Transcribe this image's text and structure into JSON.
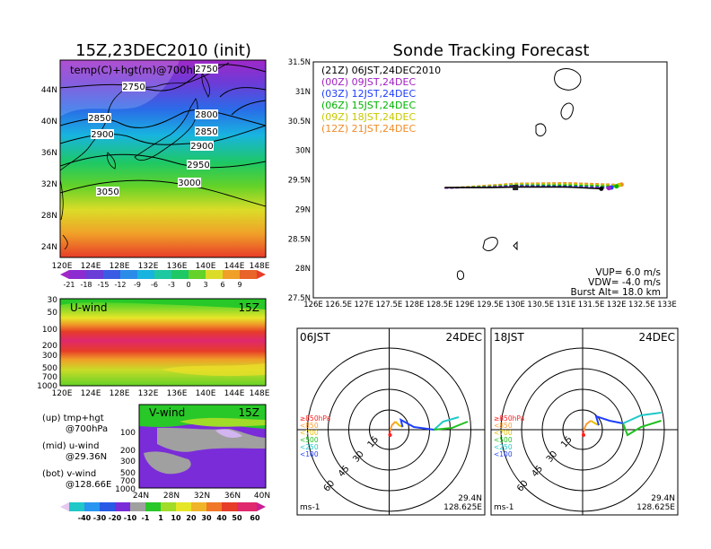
{
  "left_title": "15Z,23DEC2010 (init)",
  "right_title": "Sonde Tracking Forecast",
  "map_panel": {
    "label": "temp(C)+hgt(m)@700hPa",
    "lon_ticks": [
      "120E",
      "124E",
      "128E",
      "132E",
      "136E",
      "140E",
      "144E",
      "148E"
    ],
    "lat_ticks": [
      "44N",
      "40N",
      "36N",
      "32N",
      "28N",
      "24N"
    ],
    "contours": [
      "2750",
      "2750",
      "2800",
      "2850",
      "2850",
      "2900",
      "2900",
      "2950",
      "3000",
      "3050"
    ],
    "colorbar": [
      "-21",
      "-18",
      "-15",
      "-12",
      "-9",
      "-6",
      "-3",
      "0",
      "3",
      "6",
      "9"
    ]
  },
  "u_panel": {
    "label": "U-wind",
    "time": "15Z",
    "y_ticks": [
      "30",
      "50",
      "100",
      "200",
      "300",
      "500",
      "700",
      "1000"
    ],
    "x_ticks": [
      "120E",
      "124E",
      "128E",
      "132E",
      "136E",
      "140E",
      "144E",
      "148E"
    ]
  },
  "v_panel": {
    "label": "V-wind",
    "time": "15Z",
    "y_ticks": [
      "100",
      "200",
      "300",
      "500",
      "700",
      "1000"
    ],
    "x_ticks": [
      "24N",
      "28N",
      "32N",
      "36N",
      "40N"
    ],
    "colorbar": [
      "-40",
      "-30",
      "-20",
      "-10",
      "-1",
      "1",
      "10",
      "20",
      "30",
      "40",
      "50",
      "60"
    ]
  },
  "notes": [
    {
      "a": "(up) tmp+hgt",
      "b": "@700hPa"
    },
    {
      "a": "(mid) u-wind",
      "b": "@29.36N"
    },
    {
      "a": "(bot) v-wind",
      "b": "@128.66E"
    }
  ],
  "track_panel": {
    "legend": [
      {
        "text": "(21Z)  06JST,24DEC2010",
        "color": "#000000"
      },
      {
        "text": "(00Z)  09JST,24DEC",
        "color": "#a020c0"
      },
      {
        "text": "(03Z)  12JST,24DEC",
        "color": "#1e3cff"
      },
      {
        "text": "(06Z)  15JST,24DEC",
        "color": "#00b400"
      },
      {
        "text": "(09Z)  18JST,24DEC",
        "color": "#c8c800"
      },
      {
        "text": "(12Z)  21JST,24DEC",
        "color": "#f08c28"
      }
    ],
    "x_ticks": [
      "126E",
      "126.5E",
      "127E",
      "127.5E",
      "128E",
      "128.5E",
      "129E",
      "129.5E",
      "130E",
      "130.5E",
      "131E",
      "131.5E",
      "132E",
      "132.5E",
      "133E"
    ],
    "y_ticks": [
      "31.5N",
      "31N",
      "30.5N",
      "30N",
      "29.5N",
      "29N",
      "28.5N",
      "28N",
      "27.5N"
    ],
    "params": [
      "VUP=  6.0  m/s",
      "VDW= -4.0  m/s",
      "Burst Alt= 18.0  km"
    ]
  },
  "hodographs": [
    {
      "time": "06JST",
      "date": "24DEC",
      "lat": "29.4N",
      "lon": "128.625E",
      "unit": "ms-1",
      "rings": [
        "15",
        "30",
        "45",
        "60"
      ],
      "levels": [
        {
          "t": "≥850hPa",
          "c": "#ff2020"
        },
        {
          "t": "<850",
          "c": "#ff9a30"
        },
        {
          "t": "<700",
          "c": "#e6c000"
        },
        {
          "t": "<500",
          "c": "#20c020"
        },
        {
          "t": "<250",
          "c": "#20c8c8"
        },
        {
          "t": "<100",
          "c": "#2040ff"
        }
      ]
    },
    {
      "time": "18JST",
      "date": "24DEC",
      "lat": "29.4N",
      "lon": "128.625E",
      "unit": "ms-1",
      "rings": [
        "15",
        "30",
        "45",
        "60"
      ],
      "levels": [
        {
          "t": "≥850hPa",
          "c": "#ff2020"
        },
        {
          "t": "<850",
          "c": "#ff9a30"
        },
        {
          "t": "<700",
          "c": "#e6c000"
        },
        {
          "t": "<500",
          "c": "#20c020"
        },
        {
          "t": "<250",
          "c": "#20c8c8"
        },
        {
          "t": "<100",
          "c": "#2040ff"
        }
      ]
    }
  ],
  "chart_data": [
    {
      "type": "heatmap",
      "title": "15Z,23DEC2010 (init)",
      "xlabel": "",
      "ylabel": "",
      "xlim": [
        "120E",
        "148E"
      ],
      "ylim": [
        "23N",
        "47N"
      ],
      "levels": [
        -21,
        -18,
        -15,
        -12,
        -9,
        -6,
        -3,
        0,
        3,
        6,
        9
      ]
    },
    {
      "type": "heatmap",
      "title": "U-wind",
      "ylim": [
        1000,
        30
      ]
    },
    {
      "type": "heatmap",
      "title": "V-wind",
      "ylim": [
        1000,
        100
      ],
      "levels": [
        -40,
        -30,
        -20,
        -10,
        -1,
        1,
        10,
        20,
        30,
        40,
        50,
        60
      ]
    },
    {
      "type": "line",
      "title": "Sonde Tracking Forecast",
      "xlim": [
        126,
        133
      ],
      "ylim": [
        27.5,
        31.5
      ],
      "series": [
        {
          "name": "(21Z) 06JST,24DEC2010",
          "color": "#000000",
          "x": [
            128.6,
            129.5,
            130.0,
            131.0,
            131.7
          ],
          "y": [
            29.37,
            29.37,
            29.38,
            29.38,
            29.35
          ]
        },
        {
          "name": "(00Z) 09JST,24DEC",
          "color": "#a020c0",
          "x": [
            128.6,
            129.5,
            130.0,
            131.0,
            131.85
          ],
          "y": [
            29.36,
            29.38,
            29.39,
            29.38,
            29.36
          ]
        },
        {
          "name": "(03Z) 12JST,24DEC",
          "color": "#1e3cff",
          "x": [
            128.6,
            129.5,
            130.0,
            131.0,
            131.9
          ],
          "y": [
            29.36,
            29.38,
            29.4,
            29.39,
            29.37
          ]
        },
        {
          "name": "(06Z) 15JST,24DEC",
          "color": "#00b400",
          "x": [
            128.6,
            129.5,
            130.0,
            131.0,
            132.0
          ],
          "y": [
            29.36,
            29.39,
            29.41,
            29.41,
            29.39
          ]
        },
        {
          "name": "(09Z) 18JST,24DEC",
          "color": "#c8c800",
          "x": [
            128.6,
            129.5,
            130.0,
            131.0,
            132.05
          ],
          "y": [
            29.36,
            29.4,
            29.43,
            29.43,
            29.41
          ]
        },
        {
          "name": "(12Z) 21JST,24DEC",
          "color": "#f08c28",
          "x": [
            128.6,
            129.5,
            130.0,
            131.0,
            132.1
          ],
          "y": [
            29.36,
            29.41,
            29.44,
            29.45,
            29.42
          ]
        }
      ]
    }
  ]
}
